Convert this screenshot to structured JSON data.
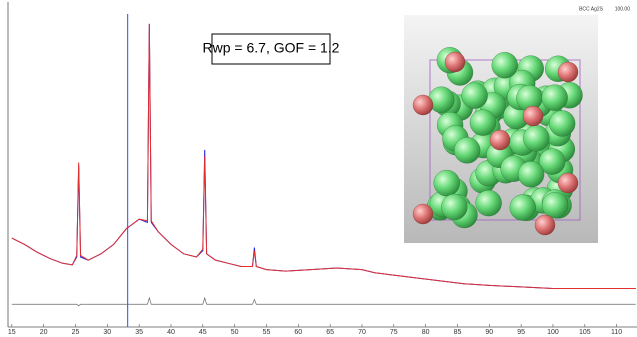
{
  "chart_data": {
    "type": "line",
    "annotation": "Rwp = 6.7, GOF = 1.2",
    "phase_label": "BCC Ag2S",
    "phase_scale": "100.00",
    "x": [
      15,
      17,
      19,
      21,
      23,
      24.5,
      25.2,
      25.5,
      25.8,
      27,
      29,
      31,
      33,
      35,
      36.3,
      36.6,
      36.9,
      38,
      40,
      42,
      44,
      45,
      45.3,
      45.6,
      47,
      49,
      51,
      52.8,
      53.1,
      53.4,
      55,
      58,
      62,
      66,
      70,
      72,
      74,
      78,
      82,
      86,
      90,
      95,
      100,
      105,
      110,
      113
    ],
    "series": [
      {
        "color": "#2222dd",
        "values": [
          26,
          24,
          21.5,
          19.5,
          18,
          17.5,
          20,
          49,
          20,
          19,
          21,
          24,
          29,
          32,
          31,
          94,
          31,
          28,
          24,
          21,
          20,
          22,
          54,
          21,
          19,
          18,
          17,
          17,
          23,
          17,
          16,
          15.5,
          16,
          16.5,
          16,
          15,
          14.5,
          13.5,
          12.5,
          11.5,
          11,
          10.5,
          10,
          10,
          10,
          10
        ]
      },
      {
        "color": "#e03030",
        "values": [
          26,
          24,
          21.5,
          19.5,
          18,
          17.5,
          20.5,
          50,
          20.5,
          19,
          21,
          24,
          29,
          32,
          31.5,
          94,
          31.5,
          28,
          24,
          21,
          20,
          22.5,
          52,
          21,
          19,
          18,
          17,
          17,
          22,
          17,
          16,
          15.5,
          16,
          16.5,
          16,
          15,
          14.5,
          13.5,
          12.5,
          11.5,
          11,
          10.5,
          10,
          10,
          10,
          10
        ]
      },
      {
        "color": "#666666",
        "values": [
          5,
          5,
          5,
          5,
          5,
          5,
          5,
          4.5,
          5,
          5,
          5,
          5,
          5,
          5,
          5,
          7,
          5,
          5,
          5,
          5,
          5,
          5,
          7,
          5,
          5,
          5,
          5,
          5,
          6.5,
          5,
          5,
          5,
          5,
          5,
          5,
          5,
          5,
          5,
          5,
          5,
          5,
          5,
          5,
          5,
          5,
          5
        ]
      }
    ],
    "vline": {
      "x": 33.2,
      "color": "#3344ff"
    },
    "xlim": [
      14.4,
      113.2
    ],
    "ylim": [
      0,
      100
    ],
    "xticks": [
      15,
      20,
      25,
      30,
      35,
      40,
      45,
      50,
      55,
      60,
      65,
      70,
      75,
      80,
      85,
      90,
      95,
      100,
      105,
      110
    ]
  }
}
